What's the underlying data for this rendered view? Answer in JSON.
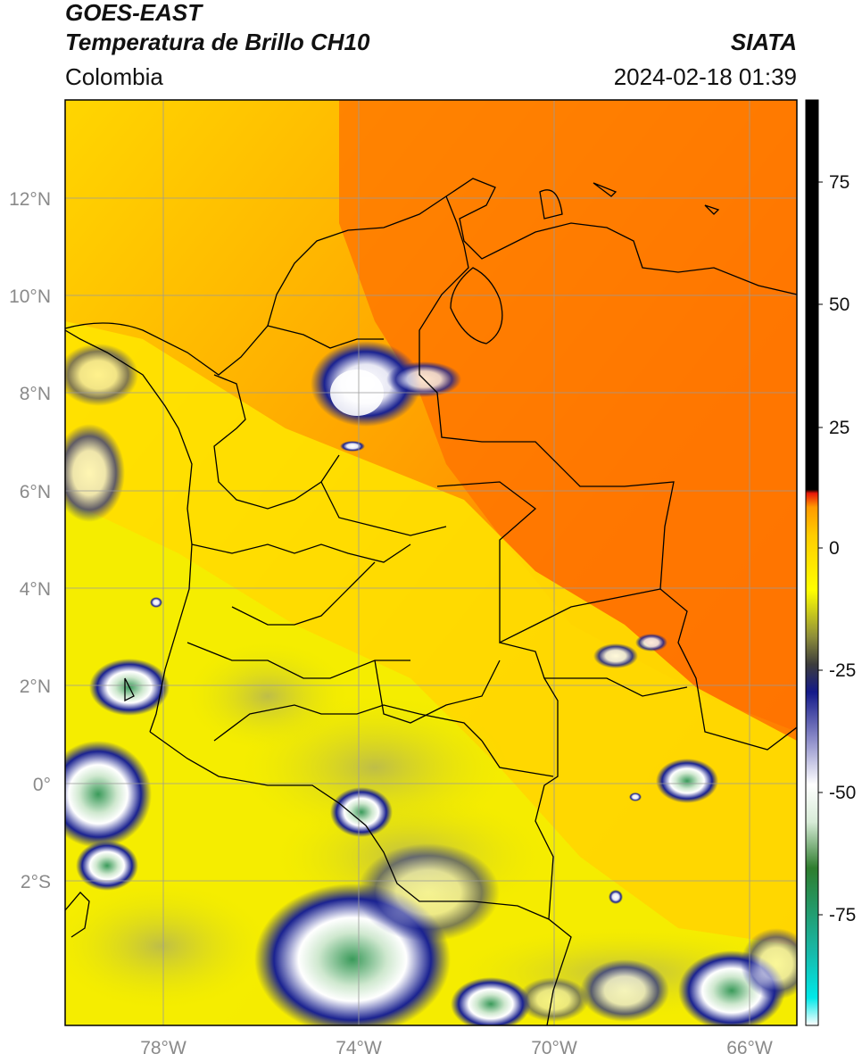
{
  "header": {
    "satellite": "GOES-EAST",
    "product": "Temperatura de Brillo CH10",
    "brand": "SIATA",
    "region": "Colombia",
    "datetime": "2024-02-18 01:39"
  },
  "axes": {
    "lat_ticks": [
      "12°N",
      "10°N",
      "8°N",
      "6°N",
      "4°N",
      "2°N",
      "0°",
      "2°S"
    ],
    "lon_ticks": [
      "78°W",
      "74°W",
      "70°W",
      "66°W"
    ],
    "gridlines": true
  },
  "colorbar": {
    "ticks": [
      "75",
      "50",
      "25",
      "0",
      "-25",
      "-50",
      "-75"
    ],
    "colors": {
      "warm_black": "#000000",
      "red": "#e8160a",
      "orange": "#ff8a00",
      "yellow": "#ffff00",
      "olive": "#8e8e3a",
      "navy": "#141a8a",
      "white": "#ffffff",
      "green": "#2e7d2e",
      "teal": "#18b8a8",
      "cyan": "#00e8e8"
    }
  },
  "map_colors": {
    "background_orange": "#ff8c00",
    "deep_orange": "#ff6f00",
    "yellow": "#ffe800",
    "border": "#000000",
    "grid": "#9a9a9a"
  }
}
